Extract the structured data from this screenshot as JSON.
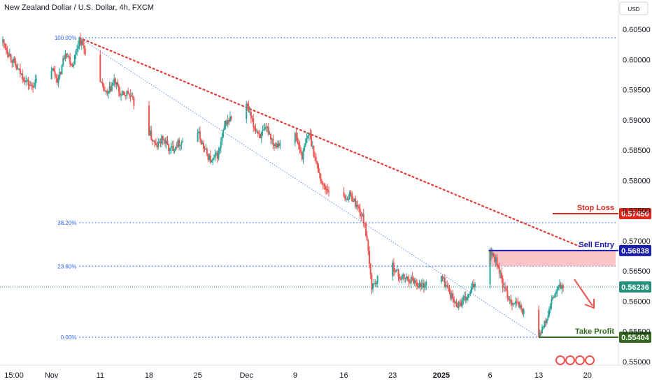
{
  "header": {
    "symbol_title": "New Zealand Dollar / U.S. Dollar, 4h, FXCM",
    "currency_button": "USD"
  },
  "colors": {
    "up": "#26a69a",
    "down": "#ef5350",
    "fib": "#2962ff",
    "trendline": "#e53935",
    "sell_zone": "#f8c4c8",
    "stop_loss": "#e0271d",
    "sell_entry": "#1a1dab",
    "take_profit": "#33691e",
    "current_price": "#26907e"
  },
  "chart_data": {
    "type": "candlestick",
    "title": "New Zealand Dollar / U.S. Dollar, 4h, FXCM",
    "ylim": [
      0.5465,
      0.607
    ],
    "y_ticks": [
      "0.60500",
      "0.60000",
      "0.59500",
      "0.59000",
      "0.58500",
      "0.58000",
      "0.57500",
      "0.57000",
      "0.56500",
      "0.56000",
      "0.55500",
      "0.55000"
    ],
    "x_ticks": [
      "15:00",
      "Nov",
      "11",
      "18",
      "25",
      "Dec",
      "9",
      "16",
      "23",
      "2025",
      "6",
      "13",
      "20"
    ],
    "price_path": [
      [
        "Oct 28",
        0.603
      ],
      [
        "Oct 30",
        0.5985
      ],
      [
        "Nov 1",
        0.5955
      ],
      [
        "Nov 4",
        0.5985
      ],
      [
        "Nov 5",
        0.5965
      ],
      [
        "Nov 6",
        0.6015
      ],
      [
        "Nov 7",
        0.599
      ],
      [
        "Nov 8",
        0.6035
      ],
      [
        "Nov 11",
        0.596
      ],
      [
        "Nov 12",
        0.594
      ],
      [
        "Nov 13",
        0.5965
      ],
      [
        "Nov 14",
        0.594
      ],
      [
        "Nov 15",
        0.5945
      ],
      [
        "Nov 18",
        0.588
      ],
      [
        "Nov 19",
        0.5855
      ],
      [
        "Nov 20",
        0.587
      ],
      [
        "Nov 21",
        0.585
      ],
      [
        "Nov 22",
        0.586
      ],
      [
        "Nov 25",
        0.588
      ],
      [
        "Nov 26",
        0.585
      ],
      [
        "Nov 27",
        0.583
      ],
      [
        "Nov 28",
        0.5845
      ],
      [
        "Nov 29",
        0.5895
      ],
      [
        "Dec 2",
        0.5925
      ],
      [
        "Dec 3",
        0.589
      ],
      [
        "Dec 4",
        0.5875
      ],
      [
        "Dec 5",
        0.5885
      ],
      [
        "Dec 6",
        0.586
      ],
      [
        "Dec 9",
        0.5875
      ],
      [
        "Dec 10",
        0.584
      ],
      [
        "Dec 11",
        0.588
      ],
      [
        "Dec 12",
        0.583
      ],
      [
        "Dec 13",
        0.579
      ],
      [
        "Dec 16",
        0.577
      ],
      [
        "Dec 17",
        0.5775
      ],
      [
        "Dec 18",
        0.5755
      ],
      [
        "Dec 19",
        0.573
      ],
      [
        "Dec 20",
        0.5625
      ],
      [
        "Dec 23",
        0.566
      ],
      [
        "Dec 24",
        0.564
      ],
      [
        "Dec 26",
        0.5635
      ],
      [
        "Dec 27",
        0.5625
      ],
      [
        "Dec 30",
        0.564
      ],
      [
        "Dec 31",
        0.562
      ],
      [
        "Jan 1",
        0.5595
      ],
      [
        "Jan 2",
        0.5598
      ],
      [
        "Jan 3",
        0.561
      ],
      [
        "Jan 6",
        0.5686
      ],
      [
        "Jan 7",
        0.5665
      ],
      [
        "Jan 8",
        0.562
      ],
      [
        "Jan 9",
        0.56
      ],
      [
        "Jan 10",
        0.5595
      ],
      [
        "Jan 13",
        0.5546
      ],
      [
        "Jan 14",
        0.5565
      ],
      [
        "Jan 15",
        0.5605
      ],
      [
        "Jan 16",
        0.5624
      ]
    ],
    "fibonacci": [
      {
        "label": "100.00%",
        "price": 0.6036
      },
      {
        "label": "38.20%",
        "price": 0.573
      },
      {
        "label": "23.60%",
        "price": 0.5658
      },
      {
        "label": "0.00%",
        "price": 0.55404
      }
    ],
    "levels": [
      {
        "label": "Stop Loss",
        "tag": "0.57450",
        "price": 0.5745
      },
      {
        "label": "Sell Entry",
        "tag": "0.56838",
        "price": 0.56838
      },
      {
        "label": "Take Profit",
        "tag": "0.55404",
        "price": 0.55404
      }
    ],
    "current_price": {
      "tag": "0.56236",
      "price": 0.56236
    },
    "sell_zone": [
      0.56838,
      0.5658
    ],
    "trendline": [
      [
        "Nov 8",
        0.6036
      ],
      [
        "Jan 15",
        0.569
      ]
    ],
    "channel_line": [
      [
        "Nov 8",
        0.6036
      ],
      [
        "Jan 13",
        0.55404
      ]
    ]
  }
}
